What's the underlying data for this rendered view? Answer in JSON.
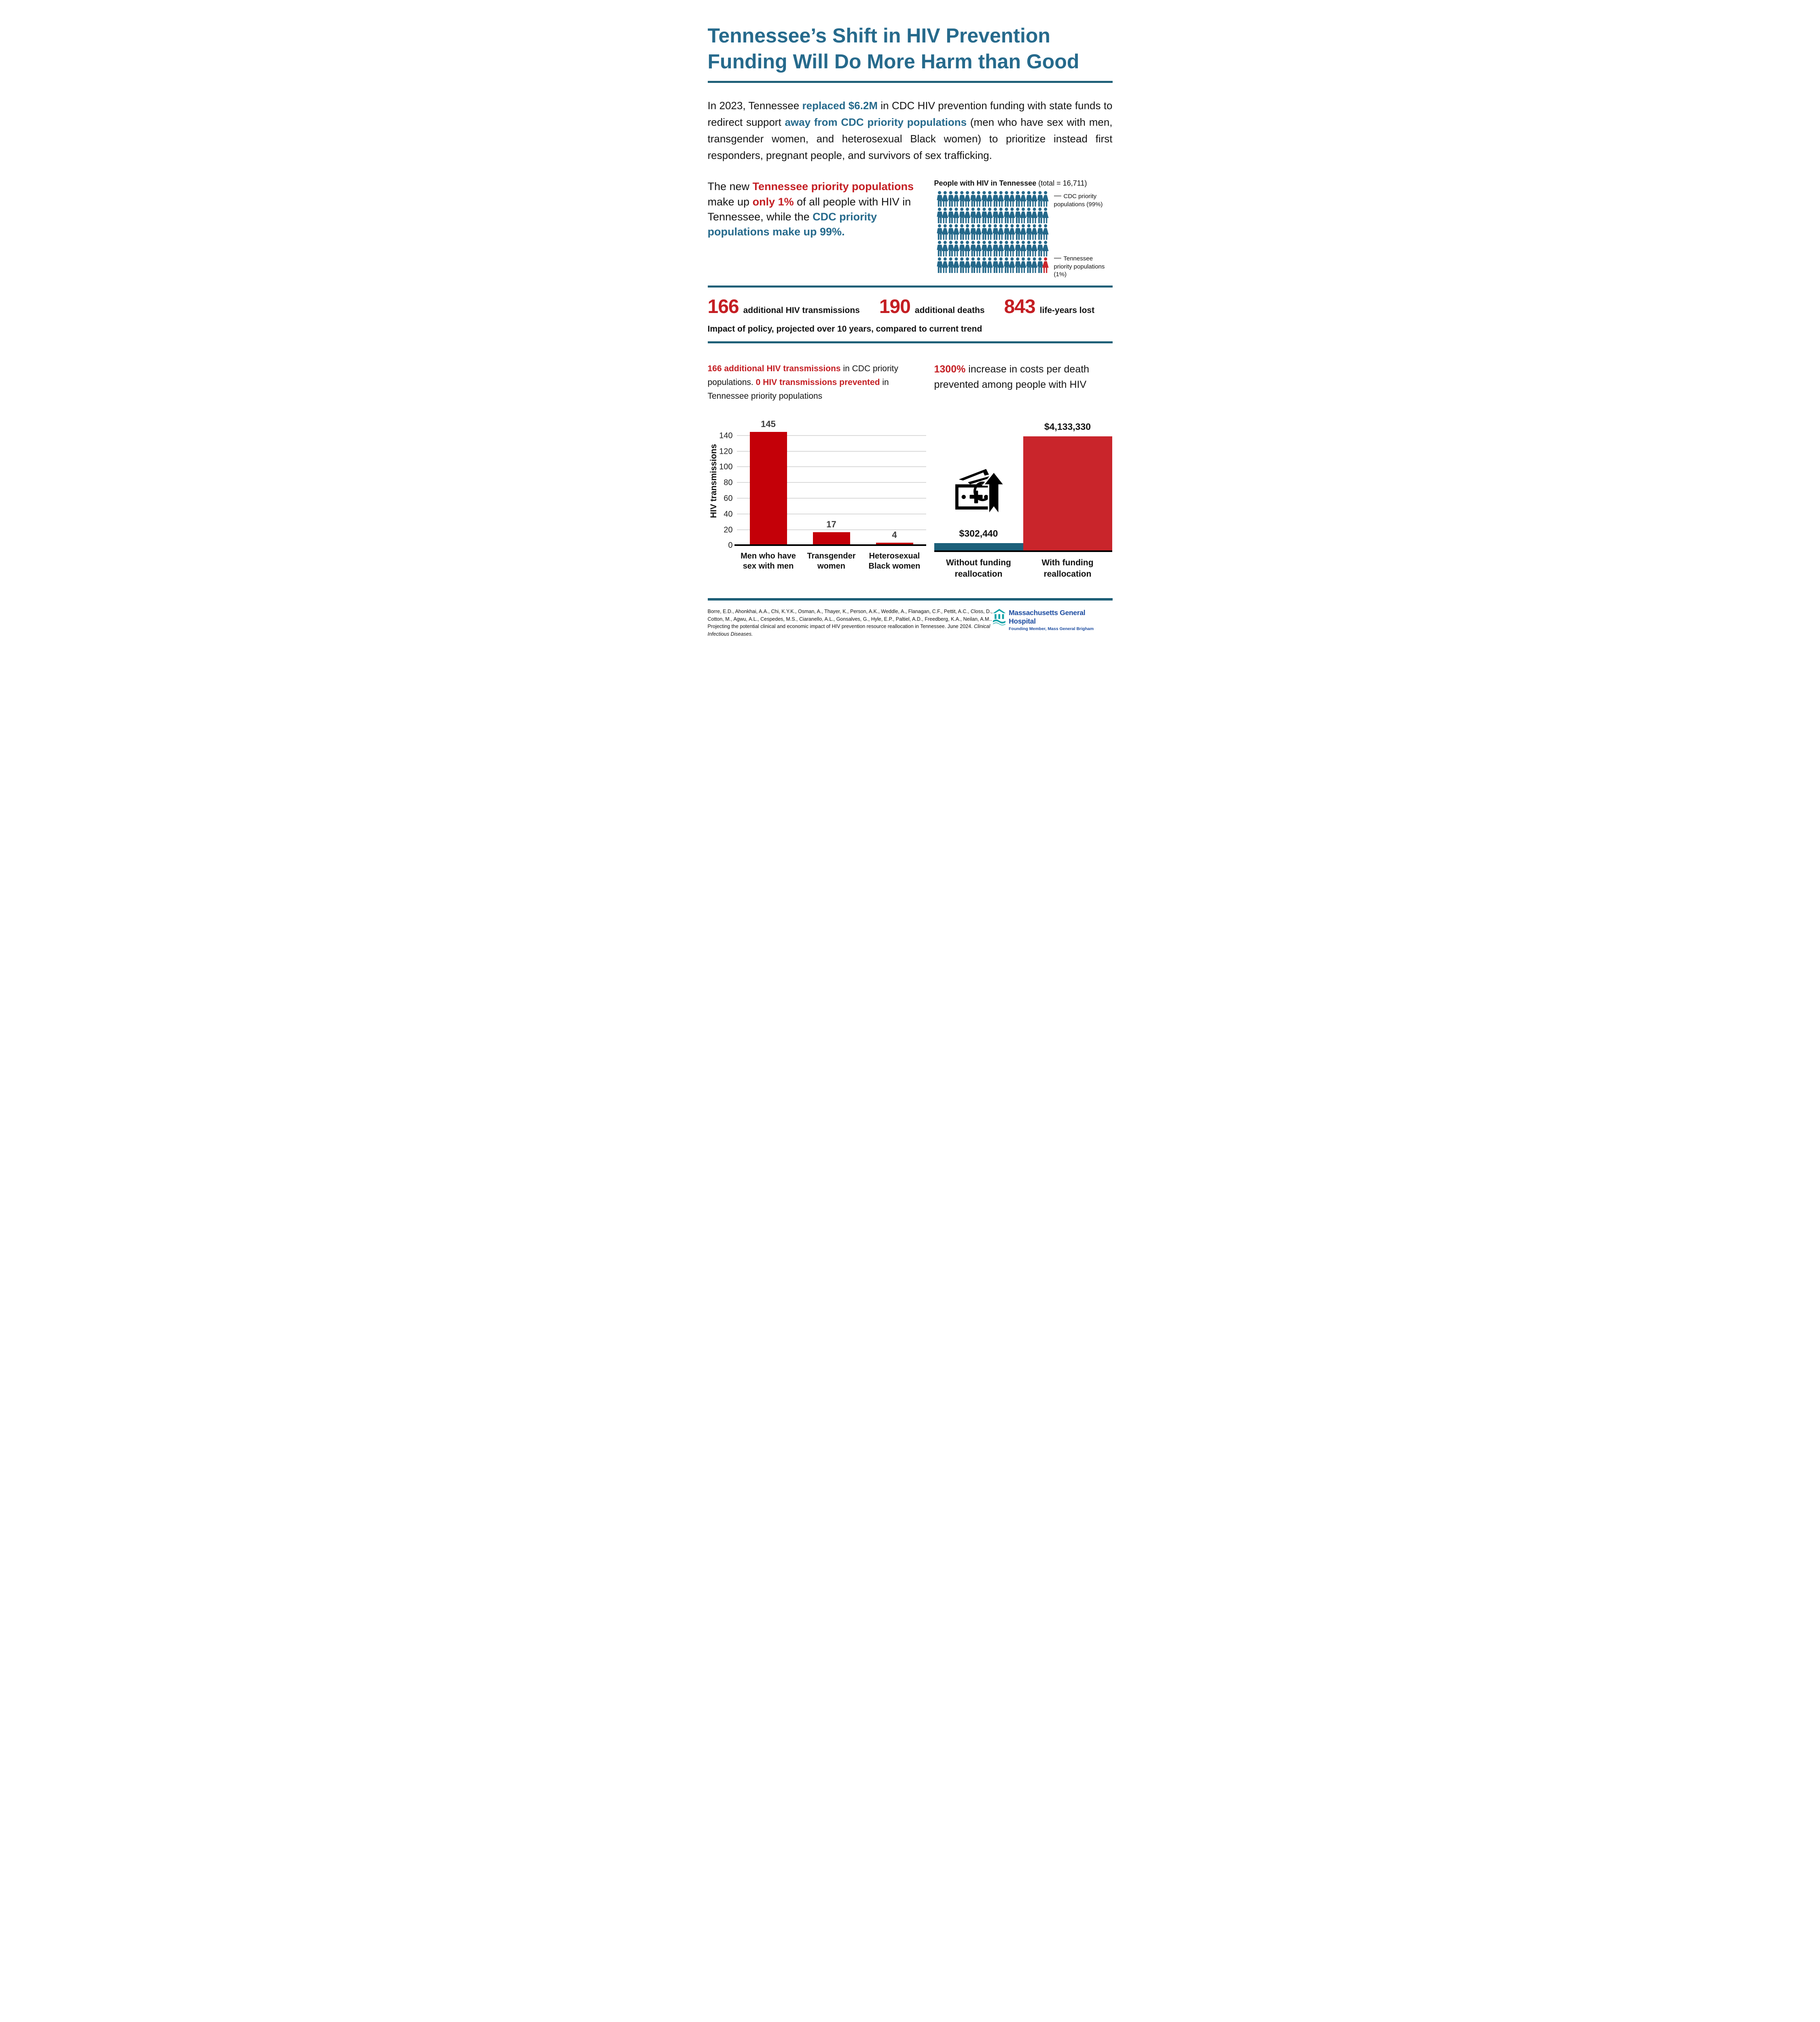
{
  "colors": {
    "teal_accent": "#266A8C",
    "red_accent": "#C41E23",
    "bar_red": "#C40008",
    "bar_red_right": "#C9252B",
    "bar_teal": "#1C607A",
    "rule_teal": "#1F6078",
    "pictogram_teal": "#24688A",
    "pictogram_red": "#C9252B",
    "grid_gray": "#D9D9D9",
    "legend_dash_gray": "#9a9a9a",
    "mgh_blue": "#1D4DA1",
    "mgh_teal": "#12A3A8"
  },
  "title": {
    "line1": "Tennessee’s Shift in HIV Prevention",
    "line2": "Funding Will Do More Harm than Good"
  },
  "intro": {
    "segments": [
      {
        "text": "In 2023, Tennessee ",
        "style": "normal"
      },
      {
        "text": "replaced $6.2M",
        "style": "teal"
      },
      {
        "text": " in CDC HIV prevention funding with state funds to redirect support ",
        "style": "normal"
      },
      {
        "text": "away from CDC priority populations",
        "style": "teal"
      },
      {
        "text": " (men who have sex with men, transgender women, and heterosexual Black women) to prioritize instead first responders, pregnant people, and survivors of sex trafficking.",
        "style": "normal"
      }
    ]
  },
  "highlight": {
    "segments": [
      {
        "text": "The new ",
        "style": "normal"
      },
      {
        "text": "Tennessee priority populations",
        "style": "red"
      },
      {
        "text": " make up ",
        "style": "normal"
      },
      {
        "text": "only 1%",
        "style": "red"
      },
      {
        "text": " of all people with HIV in Tennessee, while the ",
        "style": "normal"
      },
      {
        "text": "CDC priority populations make up 99%.",
        "style": "teal"
      }
    ]
  },
  "pictogram": {
    "title_bold": "People with HIV in Tennessee ",
    "title_normal": "(total = 16,711)",
    "rows": 5,
    "cols": 20,
    "total_icons": 100,
    "red_index": 99,
    "legend": [
      {
        "label": "CDC priority populations (99%)"
      },
      {
        "label": "Tennessee priority populations (1%)"
      }
    ]
  },
  "impact_stats": {
    "items": [
      {
        "value": "166",
        "label": "additional HIV transmissions"
      },
      {
        "value": "190",
        "label": "additional deaths"
      },
      {
        "value": "843",
        "label": "life-years lost"
      }
    ],
    "note": "Impact of policy, projected over 10 years, compared to current trend"
  },
  "left_section": {
    "header_segments": [
      {
        "text": "166 additional HIV transmissions",
        "style": "red"
      },
      {
        "text": " in CDC priority populations. ",
        "style": "normal"
      },
      {
        "text": "0 HIV transmissions prevented",
        "style": "red"
      },
      {
        "text": " in Tennessee priority populations",
        "style": "normal"
      }
    ]
  },
  "right_section": {
    "header_segments": [
      {
        "text": "1300%",
        "style": "red"
      },
      {
        "text": " increase in costs per death prevented among people with HIV",
        "style": "normal"
      }
    ]
  },
  "chart_data": [
    {
      "type": "bar",
      "categories": [
        "Men who have sex with men",
        "Transgender women",
        "Heterosexual Black women"
      ],
      "values": [
        145,
        17,
        4
      ],
      "value_labels": [
        "145",
        "17",
        "4"
      ],
      "title": "",
      "xlabel": "",
      "ylabel": "HIV transmissions",
      "yticks": [
        0,
        20,
        40,
        60,
        80,
        100,
        120,
        140
      ],
      "ylim": [
        0,
        150
      ],
      "grid": true,
      "bar_color": "#C40008"
    },
    {
      "type": "bar",
      "categories": [
        "Without funding reallocation",
        "With funding reallocation"
      ],
      "values": [
        302440,
        4133330
      ],
      "value_labels": [
        "$302,440",
        "$4,133,330"
      ],
      "title": "",
      "xlabel": "",
      "ylabel": "",
      "ylim": [
        0,
        4500000
      ],
      "grid": false,
      "bar_colors": [
        "#1C607A",
        "#C9252B"
      ]
    }
  ],
  "footer": {
    "citation_text": "Borre, E.D., Ahonkhai, A.A., Chi, K.Y.K., Osman, A., Thayer, K., Person, A.K., Weddle, A., Flanagan, C.F., Pettit, A.C., Closs, D., Cotton, M., Agwu, A.L., Cespedes, M.S., Ciaranello, A.L., Gonsalves, G., Hyle, E.P., Paltiel, A.D., Freedberg, K.A., Neilan, A.M.. Projecting the potential clinical and economic impact of HIV prevention resource reallocation in Tennessee. June 2024. ",
    "citation_journal": "Clinical Infectious Diseases.",
    "logo": {
      "name": "Massachusetts General Hospital",
      "sub": "Founding Member, Mass General Brigham"
    }
  }
}
